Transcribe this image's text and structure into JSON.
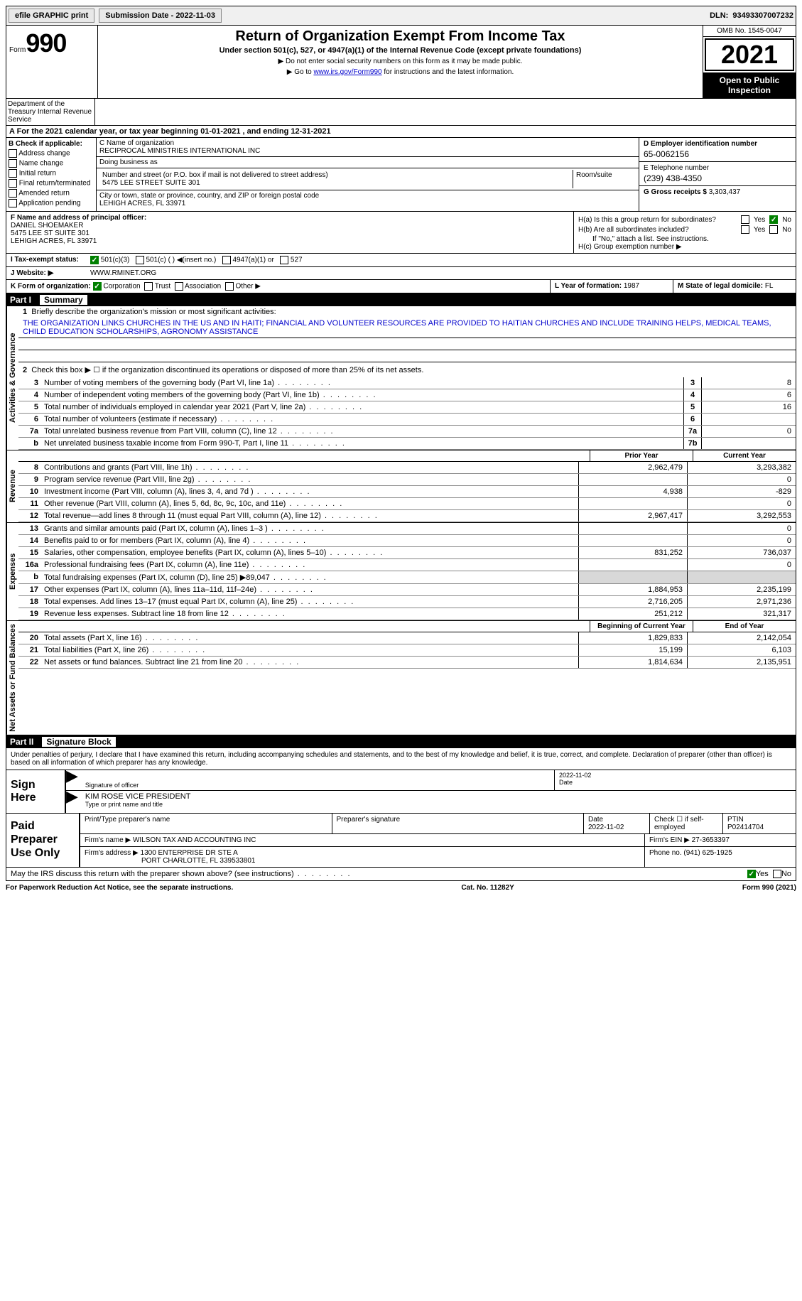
{
  "topbar": {
    "efile": "efile GRAPHIC print",
    "submission": "Submission Date - 2022-11-03",
    "dln_label": "DLN:",
    "dln": "93493307007232"
  },
  "header": {
    "form_label": "Form",
    "form_num": "990",
    "title": "Return of Organization Exempt From Income Tax",
    "subtitle": "Under section 501(c), 527, or 4947(a)(1) of the Internal Revenue Code (except private foundations)",
    "note1": "▶ Do not enter social security numbers on this form as it may be made public.",
    "note2_pre": "▶ Go to ",
    "note2_link": "www.irs.gov/Form990",
    "note2_post": " for instructions and the latest information.",
    "omb": "OMB No. 1545-0047",
    "year": "2021",
    "open": "Open to Public Inspection",
    "dept": "Department of the Treasury Internal Revenue Service"
  },
  "section_a": "A For the 2021 calendar year, or tax year beginning 01-01-2021   , and ending 12-31-2021",
  "check": {
    "header": "B Check if applicable:",
    "addr": "Address change",
    "name": "Name change",
    "initial": "Initial return",
    "final": "Final return/terminated",
    "amended": "Amended return",
    "app": "Application pending"
  },
  "entity": {
    "name_label": "C Name of organization",
    "name": "RECIPROCAL MINISTRIES INTERNATIONAL INC",
    "dba_label": "Doing business as",
    "street_label": "Number and street (or P.O. box if mail is not delivered to street address)",
    "street": "5475 LEE STREET SUITE 301",
    "room_label": "Room/suite",
    "city_label": "City or town, state or province, country, and ZIP or foreign postal code",
    "city": "LEHIGH ACRES, FL  33971",
    "ein_label": "D Employer identification number",
    "ein": "65-0062156",
    "tel_label": "E Telephone number",
    "tel": "(239) 438-4350",
    "gross_label": "G Gross receipts $",
    "gross": "3,303,437"
  },
  "officer": {
    "f_label": "F  Name and address of principal officer:",
    "name": "DANIEL SHOEMAKER",
    "addr1": "5475 LEE ST SUITE 301",
    "addr2": "LEHIGH ACRES, FL  33971",
    "ha": "H(a)  Is this a group return for subordinates?",
    "hb": "H(b)  Are all subordinates included?",
    "hb_note": "If \"No,\" attach a list. See instructions.",
    "hc": "H(c)  Group exemption number ▶",
    "yes": "Yes",
    "no": "No"
  },
  "status": {
    "i_label": "I  Tax-exempt status:",
    "s501c3": "501(c)(3)",
    "s501c": "501(c) (  ) ◀(insert no.)",
    "s4947": "4947(a)(1) or",
    "s527": "527",
    "j_label": "J  Website: ▶",
    "website": "WWW.RMINET.ORG",
    "k_label": "K Form of organization:",
    "corp": "Corporation",
    "trust": "Trust",
    "assoc": "Association",
    "other": "Other ▶",
    "l_label": "L Year of formation:",
    "l_val": "1987",
    "m_label": "M State of legal domicile:",
    "m_val": "FL"
  },
  "part1": {
    "label": "Part I",
    "title": "Summary",
    "v_gov": "Activities & Governance",
    "v_rev": "Revenue",
    "v_exp": "Expenses",
    "v_net": "Net Assets or Fund Balances",
    "l1_label": "1",
    "l1_text": "Briefly describe the organization's mission or most significant activities:",
    "l1_mission": "THE ORGANIZATION LINKS CHURCHES IN THE US AND IN HAITI; FINANCIAL AND VOLUNTEER RESOURCES ARE PROVIDED TO HAITIAN CHURCHES AND INCLUDE TRAINING HELPS, MEDICAL TEAMS, CHILD EDUCATION SCHOLARSHIPS, AGRONOMY ASSISTANCE",
    "l2_text": "Check this box ▶ ☐  if the organization discontinued its operations or disposed of more than 25% of its net assets.",
    "lines_gov": [
      {
        "n": "3",
        "t": "Number of voting members of the governing body (Part VI, line 1a)",
        "b": "3",
        "v": "8"
      },
      {
        "n": "4",
        "t": "Number of independent voting members of the governing body (Part VI, line 1b)",
        "b": "4",
        "v": "6"
      },
      {
        "n": "5",
        "t": "Total number of individuals employed in calendar year 2021 (Part V, line 2a)",
        "b": "5",
        "v": "16"
      },
      {
        "n": "6",
        "t": "Total number of volunteers (estimate if necessary)",
        "b": "6",
        "v": ""
      },
      {
        "n": "7a",
        "t": "Total unrelated business revenue from Part VIII, column (C), line 12",
        "b": "7a",
        "v": "0"
      },
      {
        "n": "b",
        "t": "Net unrelated business taxable income from Form 990-T, Part I, line 11",
        "b": "7b",
        "v": ""
      }
    ],
    "col_prior": "Prior Year",
    "col_current": "Current Year",
    "lines_rev": [
      {
        "n": "8",
        "t": "Contributions and grants (Part VIII, line 1h)",
        "c1": "2,962,479",
        "c2": "3,293,382"
      },
      {
        "n": "9",
        "t": "Program service revenue (Part VIII, line 2g)",
        "c1": "",
        "c2": "0"
      },
      {
        "n": "10",
        "t": "Investment income (Part VIII, column (A), lines 3, 4, and 7d )",
        "c1": "4,938",
        "c2": "-829"
      },
      {
        "n": "11",
        "t": "Other revenue (Part VIII, column (A), lines 5, 6d, 8c, 9c, 10c, and 11e)",
        "c1": "",
        "c2": "0"
      },
      {
        "n": "12",
        "t": "Total revenue—add lines 8 through 11 (must equal Part VIII, column (A), line 12)",
        "c1": "2,967,417",
        "c2": "3,292,553"
      }
    ],
    "lines_exp": [
      {
        "n": "13",
        "t": "Grants and similar amounts paid (Part IX, column (A), lines 1–3 )",
        "c1": "",
        "c2": "0"
      },
      {
        "n": "14",
        "t": "Benefits paid to or for members (Part IX, column (A), line 4)",
        "c1": "",
        "c2": "0"
      },
      {
        "n": "15",
        "t": "Salaries, other compensation, employee benefits (Part IX, column (A), lines 5–10)",
        "c1": "831,252",
        "c2": "736,037"
      },
      {
        "n": "16a",
        "t": "Professional fundraising fees (Part IX, column (A), line 11e)",
        "c1": "",
        "c2": "0"
      },
      {
        "n": "b",
        "t": "Total fundraising expenses (Part IX, column (D), line 25) ▶89,047",
        "c1": "shade",
        "c2": "shade"
      },
      {
        "n": "17",
        "t": "Other expenses (Part IX, column (A), lines 11a–11d, 11f–24e)",
        "c1": "1,884,953",
        "c2": "2,235,199"
      },
      {
        "n": "18",
        "t": "Total expenses. Add lines 13–17 (must equal Part IX, column (A), line 25)",
        "c1": "2,716,205",
        "c2": "2,971,236"
      },
      {
        "n": "19",
        "t": "Revenue less expenses. Subtract line 18 from line 12",
        "c1": "251,212",
        "c2": "321,317"
      }
    ],
    "col_begin": "Beginning of Current Year",
    "col_end": "End of Year",
    "lines_net": [
      {
        "n": "20",
        "t": "Total assets (Part X, line 16)",
        "c1": "1,829,833",
        "c2": "2,142,054"
      },
      {
        "n": "21",
        "t": "Total liabilities (Part X, line 26)",
        "c1": "15,199",
        "c2": "6,103"
      },
      {
        "n": "22",
        "t": "Net assets or fund balances. Subtract line 21 from line 20",
        "c1": "1,814,634",
        "c2": "2,135,951"
      }
    ]
  },
  "part2": {
    "label": "Part II",
    "title": "Signature Block",
    "decl": "Under penalties of perjury, I declare that I have examined this return, including accompanying schedules and statements, and to the best of my knowledge and belief, it is true, correct, and complete. Declaration of preparer (other than officer) is based on all information of which preparer has any knowledge.",
    "sign_here": "Sign Here",
    "sig_officer": "Signature of officer",
    "sig_date": "2022-11-02",
    "date_label": "Date",
    "officer_name": "KIM ROSE  VICE PRESIDENT",
    "type_name": "Type or print name and title",
    "paid": "Paid Preparer Use Only",
    "prep_name_label": "Print/Type preparer's name",
    "prep_sig_label": "Preparer's signature",
    "prep_date": "2022-11-02",
    "prep_check": "Check ☐ if self-employed",
    "ptin_label": "PTIN",
    "ptin": "P02414704",
    "firm_name_label": "Firm's name     ▶",
    "firm_name": "WILSON TAX AND ACCOUNTING INC",
    "firm_ein_label": "Firm's EIN ▶",
    "firm_ein": "27-3653397",
    "firm_addr_label": "Firm's address ▶",
    "firm_addr": "1300 ENTERPRISE DR STE A",
    "firm_city": "PORT CHARLOTTE, FL  339533801",
    "phone_label": "Phone no.",
    "phone": "(941) 625-1925",
    "discuss": "May the IRS discuss this return with the preparer shown above? (see instructions)",
    "yes": "Yes",
    "no": "No"
  },
  "footer": {
    "pra": "For Paperwork Reduction Act Notice, see the separate instructions.",
    "cat": "Cat. No. 11282Y",
    "form": "Form 990 (2021)"
  }
}
